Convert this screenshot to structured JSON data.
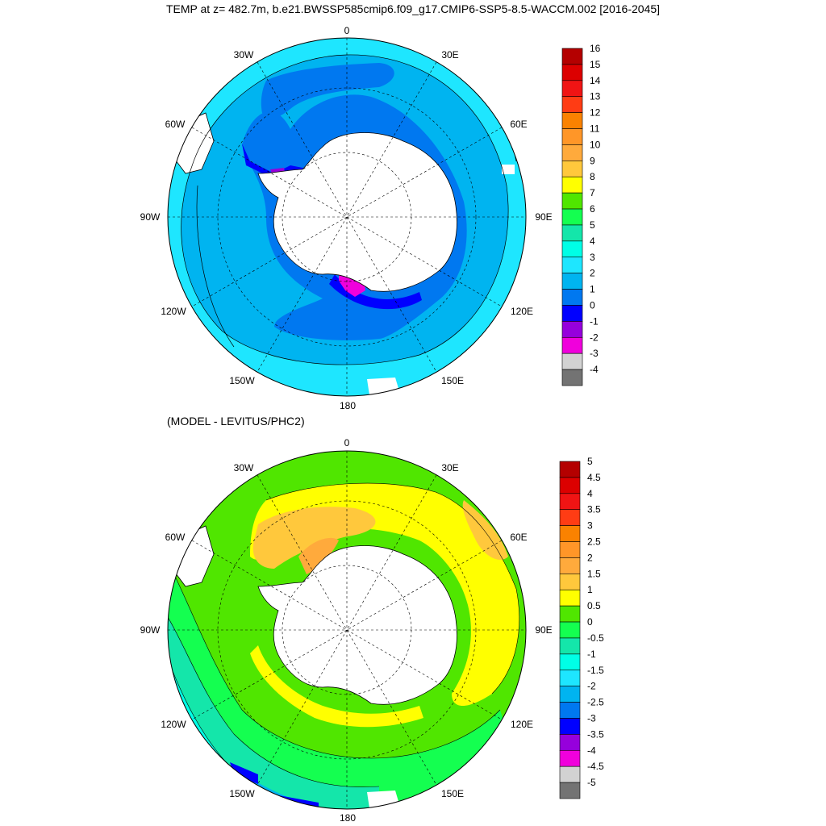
{
  "title": "TEMP at z= 482.7m, b.e21.BWSSP585cmip6.f09_g17.CMIP6-SSP5-8.5-WACCM.002 [2016-2045]",
  "subtitle": "(MODEL - LEVITUS/PHC2)",
  "longitude_labels": [
    "0",
    "30E",
    "60E",
    "90E",
    "120E",
    "150E",
    "180",
    "150W",
    "120W",
    "90W",
    "60W",
    "30W"
  ],
  "top_colorbar": {
    "labels": [
      "16",
      "15",
      "14",
      "13",
      "12",
      "11",
      "10",
      "9",
      "8",
      "7",
      "6",
      "5",
      "4",
      "3",
      "2",
      "1",
      "0",
      "-1",
      "-2",
      "-3",
      "-4"
    ],
    "colors": [
      "#b40000",
      "#dc0000",
      "#f01414",
      "#ff3c14",
      "#fa8200",
      "#ff9628",
      "#ffaa3c",
      "#ffc83c",
      "#ffff00",
      "#50e600",
      "#14ff50",
      "#14e6aa",
      "#00ffe6",
      "#1ee6ff",
      "#00b4f0",
      "#0078f0",
      "#0000ff",
      "#9600dc",
      "#f000dc",
      "#d2d2d2",
      "#737373"
    ]
  },
  "bottom_colorbar": {
    "labels": [
      "5",
      "4.5",
      "4",
      "3.5",
      "3",
      "2.5",
      "2",
      "1.5",
      "1",
      "0.5",
      "0",
      "-0.5",
      "-1",
      "-1.5",
      "-2",
      "-2.5",
      "-3",
      "-3.5",
      "-4",
      "-4.5",
      "-5"
    ],
    "colors": [
      "#b40000",
      "#dc0000",
      "#f01414",
      "#ff3c14",
      "#fa8200",
      "#ff9628",
      "#ffaa3c",
      "#ffc83c",
      "#ffff00",
      "#50e600",
      "#14ff50",
      "#14e6aa",
      "#00ffe6",
      "#1ee6ff",
      "#00b4f0",
      "#0078f0",
      "#0000ff",
      "#9600dc",
      "#f000dc",
      "#d2d2d2",
      "#737373"
    ]
  }
}
